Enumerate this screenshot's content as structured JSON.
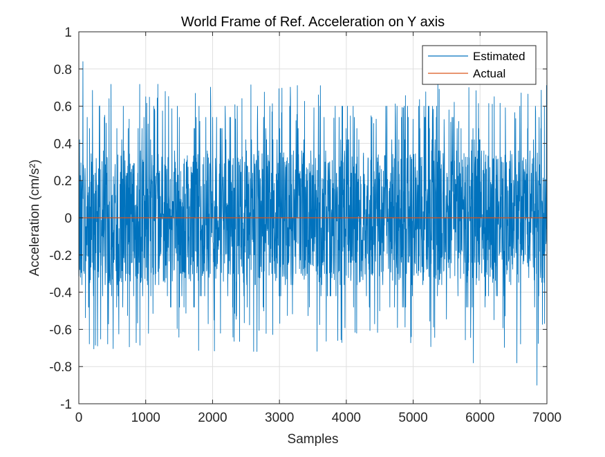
{
  "chart_data": {
    "type": "line",
    "title": "World Frame of Ref. Acceleration on Y axis",
    "xlabel": "Samples",
    "ylabel": "Acceleration (cm/s²)",
    "xlim": [
      0,
      7000
    ],
    "ylim": [
      -1,
      1
    ],
    "xticks": [
      0,
      1000,
      2000,
      3000,
      4000,
      5000,
      6000,
      7000
    ],
    "yticks": [
      -1,
      -0.8,
      -0.6,
      -0.4,
      -0.2,
      0,
      0.2,
      0.4,
      0.6,
      0.8,
      1
    ],
    "xtick_labels": [
      "0",
      "1000",
      "2000",
      "3000",
      "4000",
      "5000",
      "6000",
      "7000"
    ],
    "ytick_labels": [
      "-1",
      "-0.8",
      "-0.6",
      "-0.4",
      "-0.2",
      "0",
      "0.2",
      "0.4",
      "0.6",
      "0.8",
      "1"
    ],
    "grid": true,
    "legend_position": "top-right",
    "series": [
      {
        "name": "Estimated",
        "color": "#0072BD",
        "n_samples": 7000,
        "approx_range": [
          -0.9,
          0.84
        ],
        "peaks": [
          {
            "x": 60,
            "y": 0.84
          },
          {
            "x": 6850,
            "y": -0.9
          },
          {
            "x": 5900,
            "y": -0.78
          },
          {
            "x": 6550,
            "y": -0.78
          }
        ],
        "values_note": "dense noise around 0, mostly within ±0.6"
      },
      {
        "name": "Actual",
        "color": "#D95319",
        "x": [
          0,
          7000
        ],
        "y": [
          0,
          0
        ]
      }
    ]
  }
}
